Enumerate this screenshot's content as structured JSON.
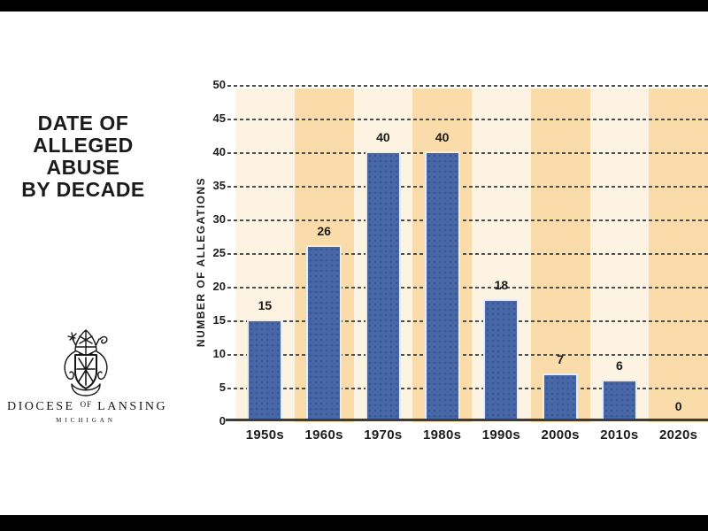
{
  "slide": {
    "title_lines": [
      "DATE OF",
      "ALLEGED",
      "ABUSE",
      "BY DECADE"
    ]
  },
  "logo": {
    "word1": "DIOCESE",
    "of": "OF",
    "word2": "LANSING",
    "subtitle": "MICHIGAN"
  },
  "chart_data": {
    "type": "bar",
    "title": "DATE OF ALLEGED ABUSE BY DECADE",
    "categories": [
      "1950s",
      "1960s",
      "1970s",
      "1980s",
      "1990s",
      "2000s",
      "2010s",
      "2020s"
    ],
    "values": [
      15,
      26,
      40,
      40,
      18,
      7,
      6,
      0
    ],
    "xlabel": "",
    "ylabel": "NUMBER OF ALLEGATIONS",
    "ylim": [
      0,
      50
    ],
    "ytick_step": 5,
    "grid": "horizontal-dashed",
    "legend": "none",
    "colors": {
      "band_light": "#fdf3e2",
      "band_dark": "#fadcaa",
      "bar_fill": "#4767a7",
      "bar_dot": "#3a5795",
      "bar_border": "#e8ecf5",
      "gridline": "#4e4e4e",
      "axis_line": "#3c3c3c",
      "text": "#1b1b1b",
      "letterbox": "#000000",
      "background": "#ffffff"
    }
  }
}
